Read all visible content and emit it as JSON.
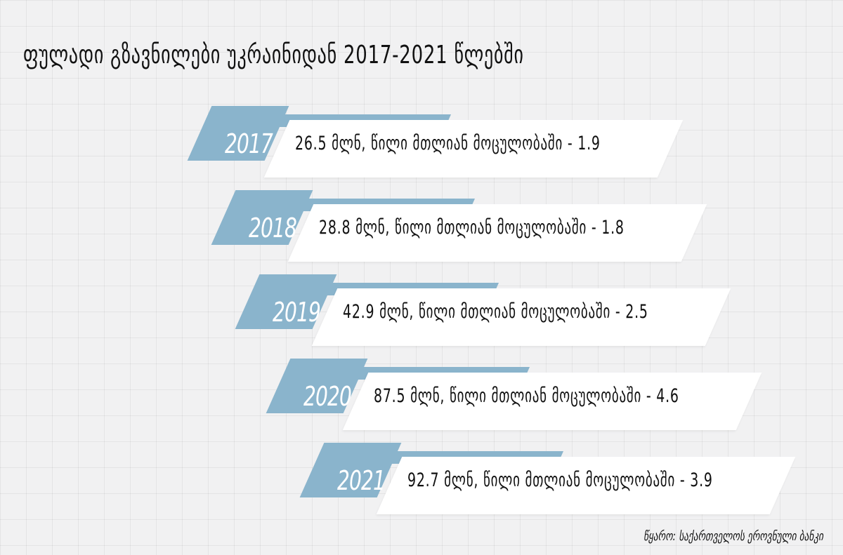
{
  "title": "ფულადი გზავნილები უკრაინიდან 2017-2021 წლებში",
  "rows": [
    {
      "year": "2017",
      "text": "26.5 მლნ, წილი მთლიან მოცულობაში - 1.9"
    },
    {
      "year": "2018",
      "text": "28.8 მლნ, წილი მთლიან მოცულობაში - 1.8"
    },
    {
      "year": "2019",
      "text": "42.9 მლნ, წილი მთლიან მოცულობაში - 2.5"
    },
    {
      "year": "2020",
      "text": "87.5 მლნ, წილი მთლიან მოცულობაში - 4.6"
    },
    {
      "year": "2021",
      "text": "92.7 მლნ, წილი მთლიან მოცულობაში - 3.9"
    }
  ],
  "source": "წყარო: საქართველოს ეროვნული ბანკი",
  "colors": {
    "accent": "#8ab4cc",
    "card": "#ffffff",
    "background": "#f1f1f2"
  }
}
